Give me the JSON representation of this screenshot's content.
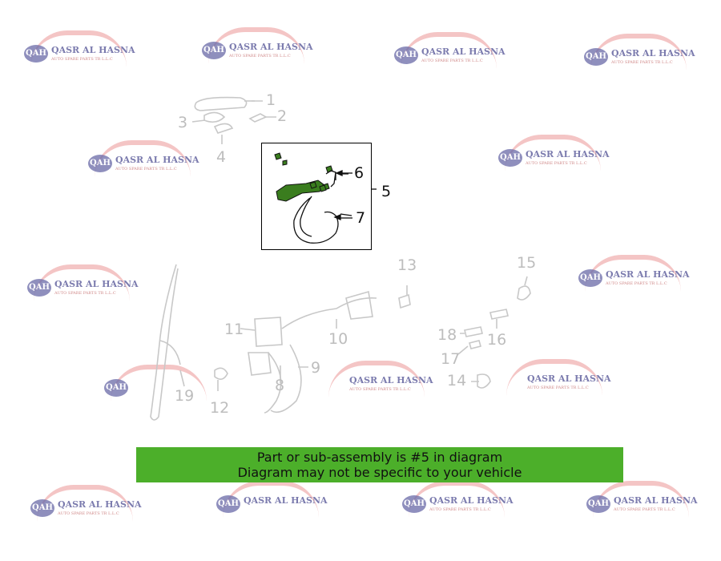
{
  "watermark": {
    "badge": "QAH",
    "name": "QASR AL HASNA",
    "subtitle": "AUTO SPARE PARTS TR L.L.C"
  },
  "callout_labels": [
    "5",
    "6",
    "7"
  ],
  "part_labels": [
    "1",
    "2",
    "3",
    "4",
    "8",
    "9",
    "10",
    "11",
    "12",
    "13",
    "14",
    "15",
    "16",
    "17",
    "18",
    "19"
  ],
  "banner": {
    "line1": "Part or sub-assembly is #5 in diagram",
    "line2": "Diagram may not be specific to your vehicle",
    "color": "#4caf2a"
  },
  "colors": {
    "highlight_part": "#3a7d1e",
    "faded_part": "#c8c8c8"
  }
}
